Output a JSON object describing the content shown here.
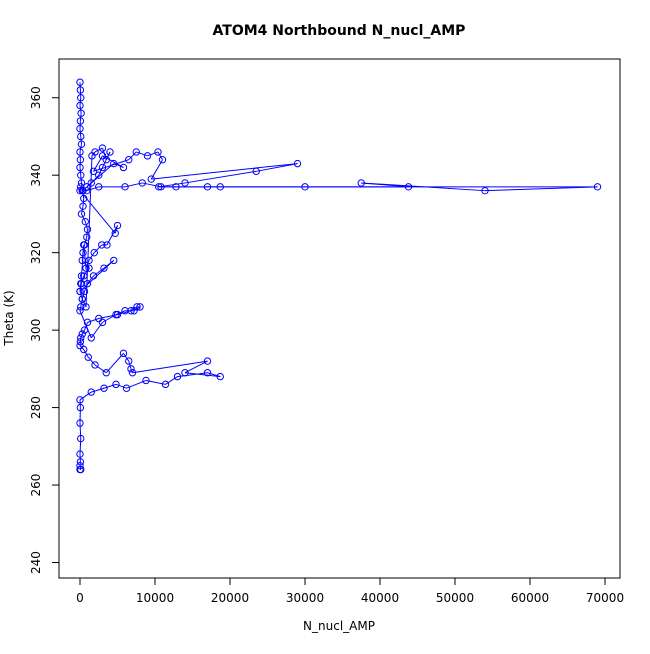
{
  "chart_data": {
    "type": "scatter",
    "title": "ATOM4 Northbound N_nucl_AMP",
    "xlabel": "N_nucl_AMP",
    "ylabel": "Theta (K)",
    "xlim": [
      -2800,
      72000
    ],
    "ylim": [
      236,
      370
    ],
    "xticks": [
      0,
      10000,
      20000,
      30000,
      40000,
      50000,
      60000,
      70000
    ],
    "yticks": [
      240,
      260,
      280,
      300,
      320,
      340,
      360
    ],
    "grid": false,
    "legend": "none",
    "marker": "open-circle",
    "connected": true,
    "color": "#0000ff",
    "series": [
      {
        "x": [
          0,
          50,
          100,
          0,
          150,
          50,
          0,
          100,
          200,
          0,
          50,
          0,
          100,
          200,
          300,
          500,
          400,
          200,
          700,
          1000,
          900,
          600,
          400,
          300,
          1200,
          500,
          200,
          0,
          300,
          800,
          1600,
          2000,
          3000,
          3500,
          4000,
          3000,
          2500,
          1500,
          900,
          4500,
          5800,
          3000,
          1800,
          6500,
          7500,
          9000,
          10400,
          11000,
          9500,
          29000,
          23500,
          14000,
          10500,
          43800,
          37500,
          54000,
          69000,
          30000,
          18700,
          17000,
          12800,
          10800,
          8300,
          6000,
          2500,
          900,
          400,
          100,
          0,
          4700,
          5000,
          3600,
          2900,
          1900,
          1200,
          800,
          500,
          200,
          100,
          0,
          4500,
          3200,
          1800,
          1000,
          600,
          300,
          100,
          0,
          1500,
          3000,
          4800,
          6000,
          7200,
          8000,
          7600,
          6800,
          5000,
          2500,
          1000,
          600,
          300,
          100,
          50,
          0,
          500,
          1100,
          2000,
          3500,
          5800,
          6500,
          6800,
          7000,
          17000,
          14000,
          18700,
          17000,
          13000,
          11400,
          8800,
          6200,
          4800,
          3200,
          1500,
          0,
          50,
          0,
          100,
          0,
          50,
          0,
          100,
          0
        ],
        "y": [
          364,
          362,
          360,
          358,
          356,
          354,
          352,
          350,
          348,
          346,
          344,
          342,
          340,
          338,
          336,
          334,
          332,
          330,
          328,
          326,
          324,
          322,
          320,
          318,
          316,
          314,
          312,
          310,
          308,
          306,
          345,
          346,
          347,
          344,
          346,
          342,
          340,
          338,
          337,
          343,
          342,
          345,
          341,
          344,
          346,
          345,
          346,
          344,
          339,
          343,
          341,
          338,
          337,
          337,
          338,
          336,
          337,
          337,
          337,
          337,
          337,
          337,
          338,
          337,
          337,
          336,
          336,
          337,
          336,
          325,
          327,
          322,
          322,
          320,
          318,
          316,
          322,
          314,
          312,
          310,
          318,
          316,
          314,
          312,
          310,
          308,
          306,
          305,
          298,
          302,
          304,
          305,
          305,
          306,
          306,
          305,
          304,
          303,
          302,
          300,
          299,
          298,
          297,
          296,
          295,
          293,
          291,
          289,
          294,
          292,
          290,
          289,
          292,
          289,
          288,
          289,
          288,
          286,
          287,
          285,
          286,
          285,
          284,
          282,
          280,
          276,
          272,
          268,
          266,
          265,
          264,
          264
        ]
      }
    ]
  }
}
